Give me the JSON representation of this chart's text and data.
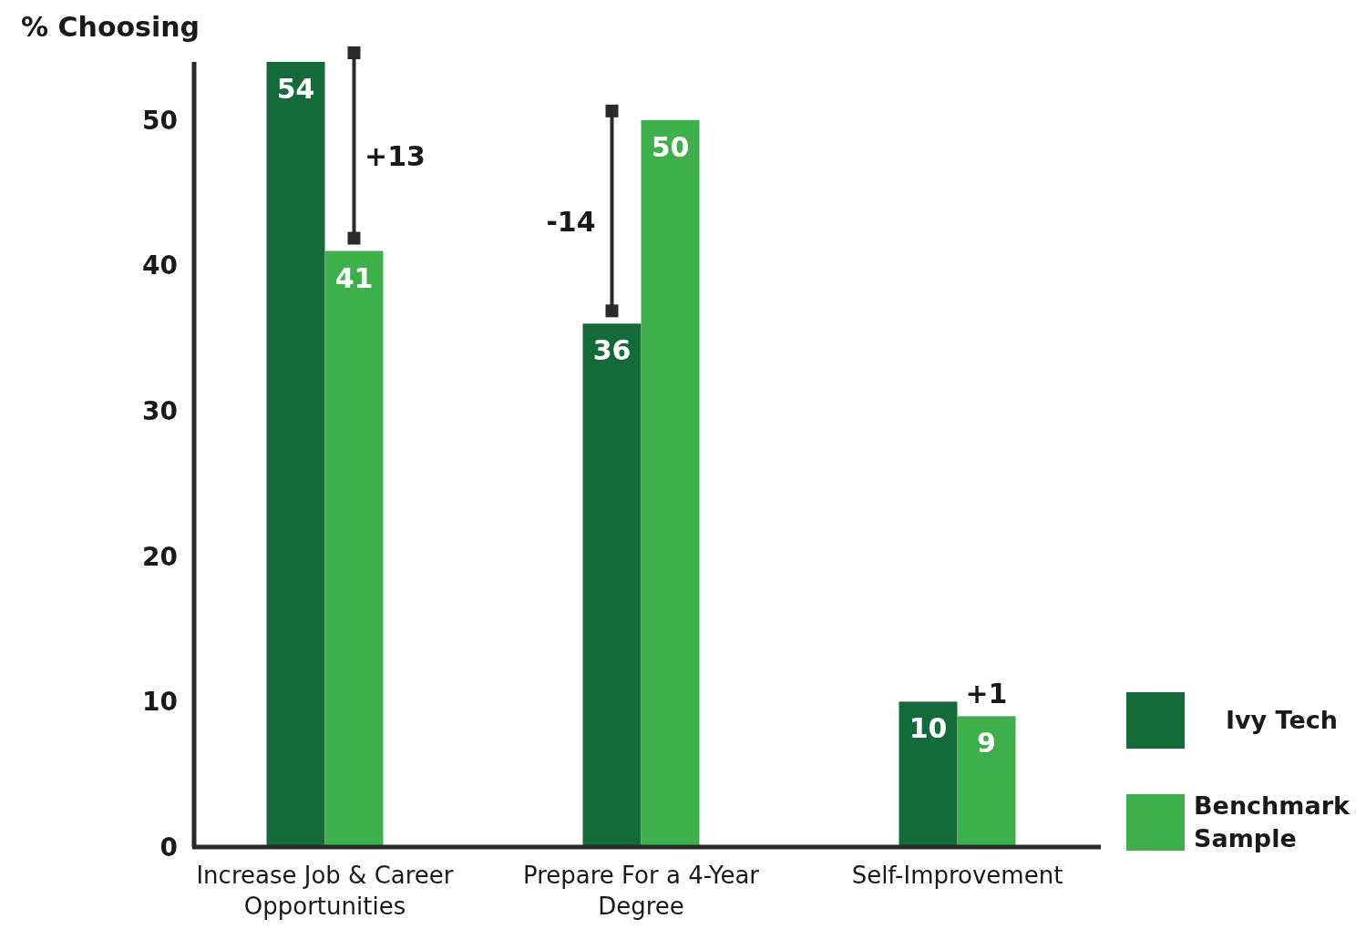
{
  "chart_data": {
    "type": "bar",
    "ylabel": "% Choosing",
    "categories": [
      "Increase Job & Career Opportunities",
      "Prepare For a 4-Year Degree",
      "Self-Improvement"
    ],
    "series": [
      {
        "name": "Ivy Tech",
        "color": "#126b38",
        "values": [
          54,
          36,
          10
        ]
      },
      {
        "name": "Benchmark Sample",
        "color": "#3db04b",
        "values": [
          41,
          50,
          9
        ]
      }
    ],
    "ylim": [
      0,
      54
    ],
    "yticks": [
      0,
      10,
      20,
      30,
      40,
      50
    ],
    "grid": false,
    "legend": "right",
    "data_labels": true,
    "annotations": [
      {
        "text": "+13",
        "x": "Increase Job & Career Opportunities",
        "y": 47.5
      },
      {
        "text": "-14",
        "x": "Prepare For a 4-Year Degree",
        "y": 43
      },
      {
        "text": "+1",
        "x": "Self-Improvement",
        "y": 9
      }
    ]
  }
}
